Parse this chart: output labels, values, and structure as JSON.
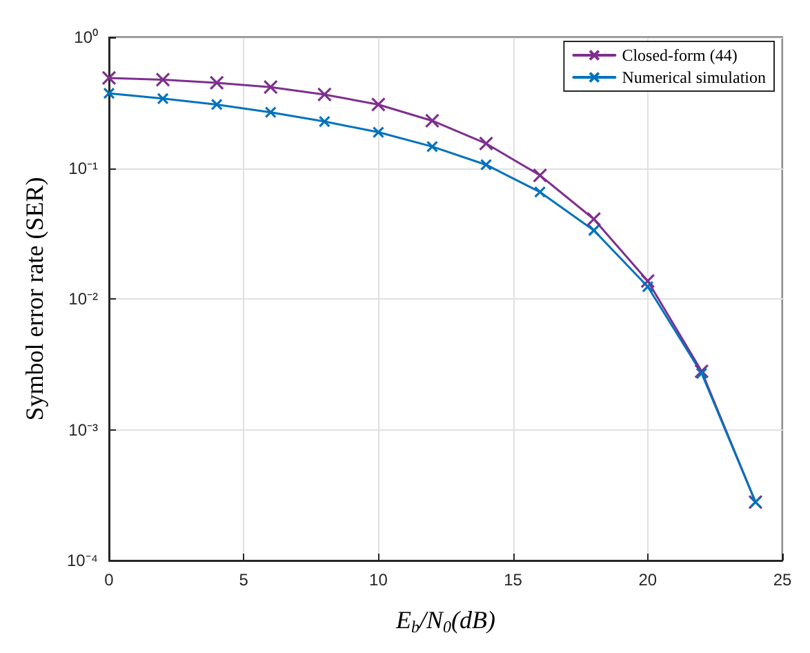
{
  "chart_data": {
    "type": "line",
    "xlabel": "E$_{b}$/N$_{0}$(dB)",
    "ylabel": "Symbol error rate (SER)",
    "x": [
      0,
      2,
      4,
      6,
      8,
      10,
      12,
      14,
      16,
      18,
      20,
      22,
      24
    ],
    "series": [
      {
        "name": "Closed-form (44)",
        "color": "#7e2f8e",
        "values": [
          0.489,
          0.474,
          0.449,
          0.416,
          0.365,
          0.306,
          0.23,
          0.154,
          0.088,
          0.0407,
          0.0137,
          0.0028,
          0.00028
        ]
      },
      {
        "name": "Numerical simulation",
        "color": "#0072bd",
        "values": [
          0.373,
          0.34,
          0.306,
          0.267,
          0.227,
          0.188,
          0.146,
          0.106,
          0.0656,
          0.0334,
          0.0124,
          0.0027,
          0.00028
        ]
      }
    ],
    "xlim": [
      0,
      25
    ],
    "xticks": [
      0,
      5,
      10,
      15,
      20,
      25
    ],
    "ylim": [
      0.0001,
      1
    ],
    "yticks": [
      {
        "value": 0.0001,
        "label": "10⁻⁴"
      },
      {
        "value": 0.001,
        "label": "10⁻³"
      },
      {
        "value": 0.01,
        "label": "10⁻²"
      },
      {
        "value": 0.1,
        "label": "10⁻¹"
      },
      {
        "value": 1,
        "label": "10⁰"
      }
    ],
    "log": "y",
    "grid": true,
    "legend": "top right",
    "marker": "cross",
    "line_style": "solid"
  }
}
